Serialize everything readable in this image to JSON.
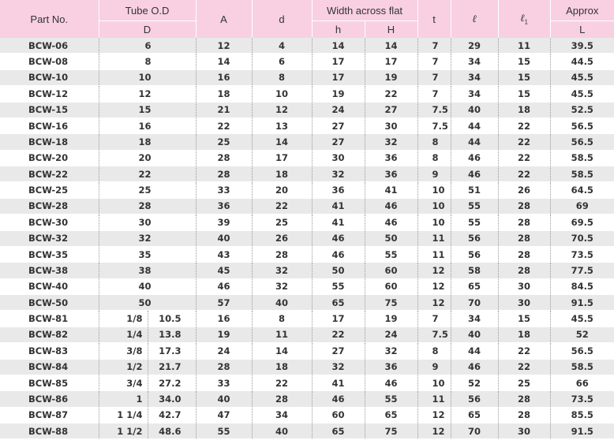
{
  "header": {
    "part_no": "Part No.",
    "tube_od": "Tube O.D",
    "tube_od_sub": "D",
    "a": "A",
    "d": "d",
    "width_across_flat": "Width across flat",
    "h_small": "h",
    "h_large": "H",
    "t": "t",
    "l": "ℓ",
    "l1_main": "ℓ",
    "l1_sub": "1",
    "approx": "Approx",
    "approx_sub": "L"
  },
  "rows": [
    {
      "part": "BCW-06",
      "frac": "",
      "od": "6",
      "a": "12",
      "d": "4",
      "h": "14",
      "H": "14",
      "t": "7",
      "l": "29",
      "l1": "11",
      "L": "39.5"
    },
    {
      "part": "BCW-08",
      "frac": "",
      "od": "8",
      "a": "14",
      "d": "6",
      "h": "17",
      "H": "17",
      "t": "7",
      "l": "34",
      "l1": "15",
      "L": "44.5"
    },
    {
      "part": "BCW-10",
      "frac": "",
      "od": "10",
      "a": "16",
      "d": "8",
      "h": "17",
      "H": "19",
      "t": "7",
      "l": "34",
      "l1": "15",
      "L": "45.5"
    },
    {
      "part": "BCW-12",
      "frac": "",
      "od": "12",
      "a": "18",
      "d": "10",
      "h": "19",
      "H": "22",
      "t": "7",
      "l": "34",
      "l1": "15",
      "L": "45.5"
    },
    {
      "part": "BCW-15",
      "frac": "",
      "od": "15",
      "a": "21",
      "d": "12",
      "h": "24",
      "H": "27",
      "t": "7.5",
      "l": "40",
      "l1": "18",
      "L": "52.5"
    },
    {
      "part": "BCW-16",
      "frac": "",
      "od": "16",
      "a": "22",
      "d": "13",
      "h": "27",
      "H": "30",
      "t": "7.5",
      "l": "44",
      "l1": "22",
      "L": "56.5"
    },
    {
      "part": "BCW-18",
      "frac": "",
      "od": "18",
      "a": "25",
      "d": "14",
      "h": "27",
      "H": "32",
      "t": "8",
      "l": "44",
      "l1": "22",
      "L": "56.5"
    },
    {
      "part": "BCW-20",
      "frac": "",
      "od": "20",
      "a": "28",
      "d": "17",
      "h": "30",
      "H": "36",
      "t": "8",
      "l": "46",
      "l1": "22",
      "L": "58.5"
    },
    {
      "part": "BCW-22",
      "frac": "",
      "od": "22",
      "a": "28",
      "d": "18",
      "h": "32",
      "H": "36",
      "t": "9",
      "l": "46",
      "l1": "22",
      "L": "58.5"
    },
    {
      "part": "BCW-25",
      "frac": "",
      "od": "25",
      "a": "33",
      "d": "20",
      "h": "36",
      "H": "41",
      "t": "10",
      "l": "51",
      "l1": "26",
      "L": "64.5"
    },
    {
      "part": "BCW-28",
      "frac": "",
      "od": "28",
      "a": "36",
      "d": "22",
      "h": "41",
      "H": "46",
      "t": "10",
      "l": "55",
      "l1": "28",
      "L": "69"
    },
    {
      "part": "BCW-30",
      "frac": "",
      "od": "30",
      "a": "39",
      "d": "25",
      "h": "41",
      "H": "46",
      "t": "10",
      "l": "55",
      "l1": "28",
      "L": "69.5"
    },
    {
      "part": "BCW-32",
      "frac": "",
      "od": "32",
      "a": "40",
      "d": "26",
      "h": "46",
      "H": "50",
      "t": "11",
      "l": "56",
      "l1": "28",
      "L": "70.5"
    },
    {
      "part": "BCW-35",
      "frac": "",
      "od": "35",
      "a": "43",
      "d": "28",
      "h": "46",
      "H": "55",
      "t": "11",
      "l": "56",
      "l1": "28",
      "L": "73.5"
    },
    {
      "part": "BCW-38",
      "frac": "",
      "od": "38",
      "a": "45",
      "d": "32",
      "h": "50",
      "H": "60",
      "t": "12",
      "l": "58",
      "l1": "28",
      "L": "77.5"
    },
    {
      "part": "BCW-40",
      "frac": "",
      "od": "40",
      "a": "46",
      "d": "32",
      "h": "55",
      "H": "60",
      "t": "12",
      "l": "65",
      "l1": "30",
      "L": "84.5"
    },
    {
      "part": "BCW-50",
      "frac": "",
      "od": "50",
      "a": "57",
      "d": "40",
      "h": "65",
      "H": "75",
      "t": "12",
      "l": "70",
      "l1": "30",
      "L": "91.5"
    },
    {
      "part": "BCW-81",
      "frac": "1/8",
      "od": "10.5",
      "a": "16",
      "d": "8",
      "h": "17",
      "H": "19",
      "t": "7",
      "l": "34",
      "l1": "15",
      "L": "45.5"
    },
    {
      "part": "BCW-82",
      "frac": "1/4",
      "od": "13.8",
      "a": "19",
      "d": "11",
      "h": "22",
      "H": "24",
      "t": "7.5",
      "l": "40",
      "l1": "18",
      "L": "52"
    },
    {
      "part": "BCW-83",
      "frac": "3/8",
      "od": "17.3",
      "a": "24",
      "d": "14",
      "h": "27",
      "H": "32",
      "t": "8",
      "l": "44",
      "l1": "22",
      "L": "56.5"
    },
    {
      "part": "BCW-84",
      "frac": "1/2",
      "od": "21.7",
      "a": "28",
      "d": "18",
      "h": "32",
      "H": "36",
      "t": "9",
      "l": "46",
      "l1": "22",
      "L": "58.5"
    },
    {
      "part": "BCW-85",
      "frac": "3/4",
      "od": "27.2",
      "a": "33",
      "d": "22",
      "h": "41",
      "H": "46",
      "t": "10",
      "l": "52",
      "l1": "25",
      "L": "66"
    },
    {
      "part": "BCW-86",
      "frac": "1",
      "od": "34.0",
      "a": "40",
      "d": "28",
      "h": "46",
      "H": "55",
      "t": "11",
      "l": "56",
      "l1": "28",
      "L": "73.5"
    },
    {
      "part": "BCW-87",
      "frac": "1 1/4",
      "od": "42.7",
      "a": "47",
      "d": "34",
      "h": "60",
      "H": "65",
      "t": "12",
      "l": "65",
      "l1": "28",
      "L": "85.5"
    },
    {
      "part": "BCW-88",
      "frac": "1 1/2",
      "od": "48.6",
      "a": "55",
      "d": "40",
      "h": "65",
      "H": "75",
      "t": "12",
      "l": "70",
      "l1": "30",
      "L": "91.5"
    }
  ],
  "colors": {
    "header_bg": "#f8d0e2",
    "row_alt_bg": "#e9e9ea",
    "text": "#333333"
  }
}
